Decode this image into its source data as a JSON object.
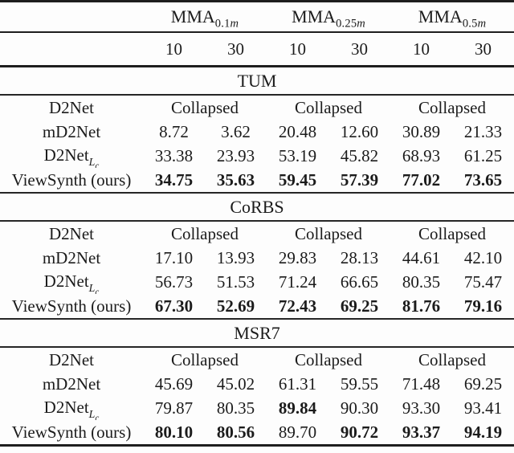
{
  "page": {
    "background_color": "#fdfdfd",
    "text_color": "#1b1b1b",
    "rule_color": "#1e1e1e"
  },
  "table": {
    "collapsed_label": "Collapsed",
    "metric_groups": [
      {
        "base": "MMA",
        "sub_num": "0.1",
        "sub_unit": "m"
      },
      {
        "base": "MMA",
        "sub_num": "0.25",
        "sub_unit": "m"
      },
      {
        "base": "MMA",
        "sub_num": "0.5",
        "sub_unit": "m"
      }
    ],
    "threshold_headers": [
      "10",
      "30",
      "10",
      "30",
      "10",
      "30"
    ],
    "sections": [
      {
        "title": "TUM",
        "rows": [
          {
            "method_base": "D2Net",
            "collapsed": true
          },
          {
            "method_base": "mD2Net",
            "values": [
              "8.72",
              "3.62",
              "20.48",
              "12.60",
              "30.89",
              "21.33"
            ],
            "bold": [
              false,
              false,
              false,
              false,
              false,
              false
            ]
          },
          {
            "method_base": "D2Net",
            "method_sub": "L",
            "method_sub_inner": "c",
            "values": [
              "33.38",
              "23.93",
              "53.19",
              "45.82",
              "68.93",
              "61.25"
            ],
            "bold": [
              false,
              false,
              false,
              false,
              false,
              false
            ]
          },
          {
            "method_base": "ViewSynth (ours)",
            "values": [
              "34.75",
              "35.63",
              "59.45",
              "57.39",
              "77.02",
              "73.65"
            ],
            "bold": [
              true,
              true,
              true,
              true,
              true,
              true
            ]
          }
        ]
      },
      {
        "title": "CoRBS",
        "rows": [
          {
            "method_base": "D2Net",
            "collapsed": true
          },
          {
            "method_base": "mD2Net",
            "values": [
              "17.10",
              "13.93",
              "29.83",
              "28.13",
              "44.61",
              "42.10"
            ],
            "bold": [
              false,
              false,
              false,
              false,
              false,
              false
            ]
          },
          {
            "method_base": "D2Net",
            "method_sub": "L",
            "method_sub_inner": "c",
            "values": [
              "56.73",
              "51.53",
              "71.24",
              "66.65",
              "80.35",
              "75.47"
            ],
            "bold": [
              false,
              false,
              false,
              false,
              false,
              false
            ]
          },
          {
            "method_base": "ViewSynth (ours)",
            "values": [
              "67.30",
              "52.69",
              "72.43",
              "69.25",
              "81.76",
              "79.16"
            ],
            "bold": [
              true,
              true,
              true,
              true,
              true,
              true
            ]
          }
        ]
      },
      {
        "title": "MSR7",
        "rows": [
          {
            "method_base": "D2Net",
            "collapsed": true
          },
          {
            "method_base": "mD2Net",
            "values": [
              "45.69",
              "45.02",
              "61.31",
              "59.55",
              "71.48",
              "69.25"
            ],
            "bold": [
              false,
              false,
              false,
              false,
              false,
              false
            ]
          },
          {
            "method_base": "D2Net",
            "method_sub": "L",
            "method_sub_inner": "c",
            "values": [
              "79.87",
              "80.35",
              "89.84",
              "90.30",
              "93.30",
              "93.41"
            ],
            "bold": [
              false,
              false,
              true,
              false,
              false,
              false
            ]
          },
          {
            "method_base": "ViewSynth (ours)",
            "values": [
              "80.10",
              "80.56",
              "89.70",
              "90.72",
              "93.37",
              "94.19"
            ],
            "bold": [
              true,
              true,
              false,
              true,
              true,
              true
            ]
          }
        ]
      }
    ]
  }
}
